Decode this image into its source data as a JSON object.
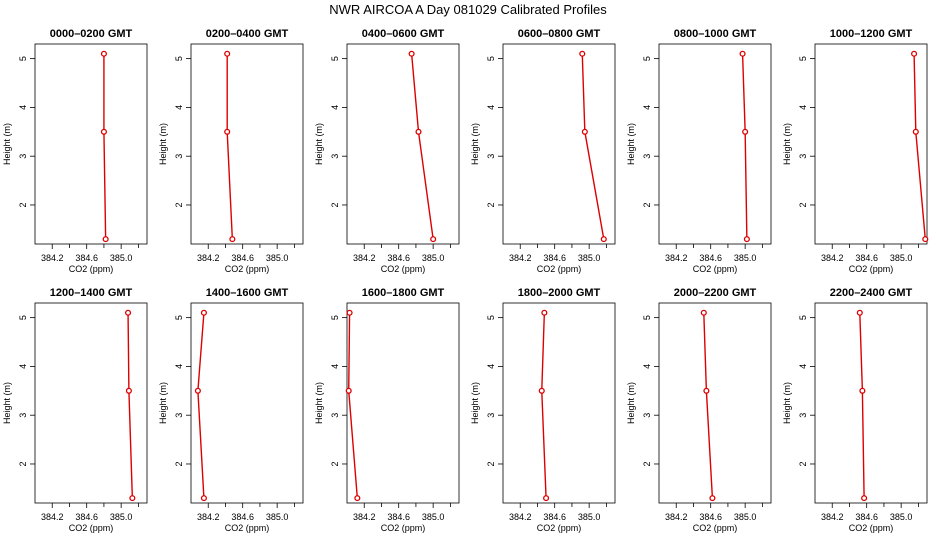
{
  "title": "NWR AIRCOA A  Day 081029  Calibrated Profiles",
  "colors": {
    "series": "#dd0000",
    "axes": "#000000",
    "background": "#ffffff"
  },
  "chart_data": [
    {
      "type": "line",
      "title": "0000–0200 GMT",
      "xlabel": "CO2 (ppm)",
      "ylabel": "Height (m)",
      "xlim": [
        384.0,
        385.3
      ],
      "ylim": [
        1.2,
        5.3
      ],
      "xticks": [
        "384.2",
        "384.6",
        "385.0"
      ],
      "yticks": [
        "2",
        "3",
        "4",
        "5"
      ],
      "x": [
        384.82,
        384.8,
        384.8
      ],
      "y": [
        1.3,
        3.5,
        5.1
      ]
    },
    {
      "type": "line",
      "title": "0200–0400 GMT",
      "xlabel": "CO2 (ppm)",
      "ylabel": "Height (m)",
      "xlim": [
        384.0,
        385.3
      ],
      "ylim": [
        1.2,
        5.3
      ],
      "xticks": [
        "384.2",
        "384.6",
        "385.0"
      ],
      "yticks": [
        "2",
        "3",
        "4",
        "5"
      ],
      "x": [
        384.48,
        384.42,
        384.42
      ],
      "y": [
        1.3,
        3.5,
        5.1
      ]
    },
    {
      "type": "line",
      "title": "0400–0600 GMT",
      "xlabel": "CO2 (ppm)",
      "ylabel": "Height (m)",
      "xlim": [
        384.0,
        385.3
      ],
      "ylim": [
        1.2,
        5.3
      ],
      "xticks": [
        "384.2",
        "384.6",
        "385.0"
      ],
      "yticks": [
        "2",
        "3",
        "4",
        "5"
      ],
      "x": [
        385.0,
        384.83,
        384.75
      ],
      "y": [
        1.3,
        3.5,
        5.1
      ]
    },
    {
      "type": "line",
      "title": "0600–0800 GMT",
      "xlabel": "CO2 (ppm)",
      "ylabel": "Height (m)",
      "xlim": [
        384.0,
        385.3
      ],
      "ylim": [
        1.2,
        5.3
      ],
      "xticks": [
        "384.2",
        "384.6",
        "385.0"
      ],
      "yticks": [
        "2",
        "3",
        "4",
        "5"
      ],
      "x": [
        385.17,
        384.95,
        384.92
      ],
      "y": [
        1.3,
        3.5,
        5.1
      ]
    },
    {
      "type": "line",
      "title": "0800–1000 GMT",
      "xlabel": "CO2 (ppm)",
      "ylabel": "Height (m)",
      "xlim": [
        384.0,
        385.3
      ],
      "ylim": [
        1.2,
        5.3
      ],
      "xticks": [
        "384.2",
        "384.6",
        "385.0"
      ],
      "yticks": [
        "2",
        "3",
        "4",
        "5"
      ],
      "x": [
        385.02,
        385.0,
        384.97
      ],
      "y": [
        1.3,
        3.5,
        5.1
      ]
    },
    {
      "type": "line",
      "title": "1000–1200 GMT",
      "xlabel": "CO2 (ppm)",
      "ylabel": "Height (m)",
      "xlim": [
        384.0,
        385.3
      ],
      "ylim": [
        1.2,
        5.3
      ],
      "xticks": [
        "384.2",
        "384.6",
        "385.0"
      ],
      "yticks": [
        "2",
        "3",
        "4",
        "5"
      ],
      "x": [
        385.28,
        385.17,
        385.15
      ],
      "y": [
        1.3,
        3.5,
        5.1
      ]
    },
    {
      "type": "line",
      "title": "1200–1400 GMT",
      "xlabel": "CO2 (ppm)",
      "ylabel": "Height (m)",
      "xlim": [
        384.0,
        385.3
      ],
      "ylim": [
        1.2,
        5.3
      ],
      "xticks": [
        "384.2",
        "384.6",
        "385.0"
      ],
      "yticks": [
        "2",
        "3",
        "4",
        "5"
      ],
      "x": [
        385.13,
        385.09,
        385.08
      ],
      "y": [
        1.3,
        3.5,
        5.1
      ]
    },
    {
      "type": "line",
      "title": "1400–1600 GMT",
      "xlabel": "CO2 (ppm)",
      "ylabel": "Height (m)",
      "xlim": [
        384.0,
        385.3
      ],
      "ylim": [
        1.2,
        5.3
      ],
      "xticks": [
        "384.2",
        "384.6",
        "385.0"
      ],
      "yticks": [
        "2",
        "3",
        "4",
        "5"
      ],
      "x": [
        384.15,
        384.08,
        384.15
      ],
      "y": [
        1.3,
        3.5,
        5.1
      ]
    },
    {
      "type": "line",
      "title": "1600–1800 GMT",
      "xlabel": "CO2 (ppm)",
      "ylabel": "Height (m)",
      "xlim": [
        384.0,
        385.3
      ],
      "ylim": [
        1.2,
        5.3
      ],
      "xticks": [
        "384.2",
        "384.6",
        "385.0"
      ],
      "yticks": [
        "2",
        "3",
        "4",
        "5"
      ],
      "x": [
        384.12,
        384.02,
        384.03
      ],
      "y": [
        1.3,
        3.5,
        5.1
      ]
    },
    {
      "type": "line",
      "title": "1800–2000 GMT",
      "xlabel": "CO2 (ppm)",
      "ylabel": "Height (m)",
      "xlim": [
        384.0,
        385.3
      ],
      "ylim": [
        1.2,
        5.3
      ],
      "xticks": [
        "384.2",
        "384.6",
        "385.0"
      ],
      "yticks": [
        "2",
        "3",
        "4",
        "5"
      ],
      "x": [
        384.5,
        384.45,
        384.48
      ],
      "y": [
        1.3,
        3.5,
        5.1
      ]
    },
    {
      "type": "line",
      "title": "2000–2200 GMT",
      "xlabel": "CO2 (ppm)",
      "ylabel": "Height (m)",
      "xlim": [
        384.0,
        385.3
      ],
      "ylim": [
        1.2,
        5.3
      ],
      "xticks": [
        "384.2",
        "384.6",
        "385.0"
      ],
      "yticks": [
        "2",
        "3",
        "4",
        "5"
      ],
      "x": [
        384.62,
        384.55,
        384.52
      ],
      "y": [
        1.3,
        3.5,
        5.1
      ]
    },
    {
      "type": "line",
      "title": "2200–2400 GMT",
      "xlabel": "CO2 (ppm)",
      "ylabel": "Height (m)",
      "xlim": [
        384.0,
        385.3
      ],
      "ylim": [
        1.2,
        5.3
      ],
      "xticks": [
        "384.2",
        "384.6",
        "385.0"
      ],
      "yticks": [
        "2",
        "3",
        "4",
        "5"
      ],
      "x": [
        384.57,
        384.55,
        384.52
      ],
      "y": [
        1.3,
        3.5,
        5.1
      ]
    }
  ]
}
